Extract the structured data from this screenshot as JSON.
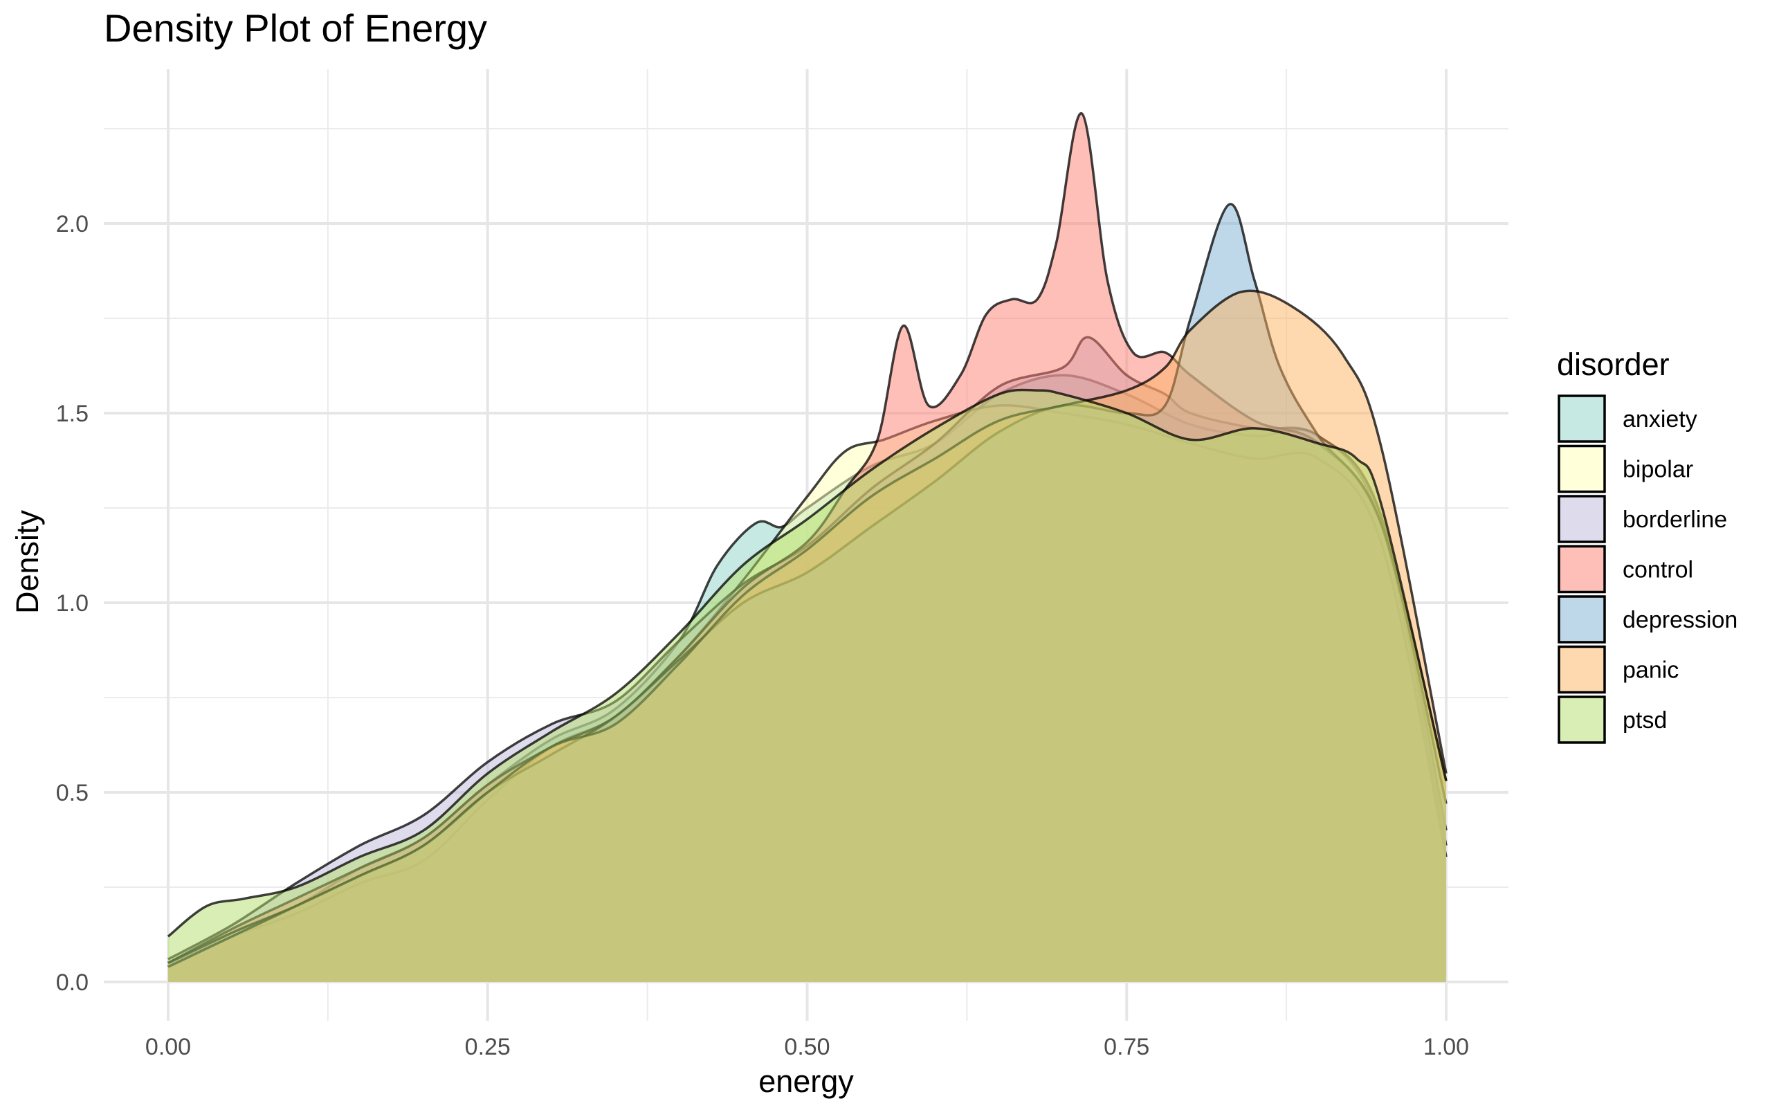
{
  "chart_data": {
    "type": "area",
    "subtype": "density",
    "title": "Density Plot of Energy",
    "xlabel": "energy",
    "ylabel": "Density",
    "xlim": [
      0,
      1
    ],
    "ylim": [
      0,
      2.35
    ],
    "x_ticks": [
      0,
      0.25,
      0.5,
      0.75,
      1
    ],
    "x_tick_labels": [
      "0.00",
      "0.25",
      "0.50",
      "0.75",
      "1.00"
    ],
    "y_ticks": [
      0,
      0.5,
      1,
      1.5,
      2
    ],
    "y_tick_labels": [
      "0.0",
      "0.5",
      "1.0",
      "1.5",
      "2.0"
    ],
    "grid": true,
    "legend_title": "disorder",
    "legend_position": "right",
    "fill_opacity": 0.5,
    "series": [
      {
        "name": "anxiety",
        "color": "#8DD3C7",
        "x": [
          0,
          0.05,
          0.1,
          0.15,
          0.2,
          0.25,
          0.3,
          0.35,
          0.4,
          0.43,
          0.46,
          0.48,
          0.5,
          0.55,
          0.6,
          0.65,
          0.7,
          0.75,
          0.8,
          0.85,
          0.9,
          0.95,
          1.0
        ],
        "y": [
          0.04,
          0.13,
          0.2,
          0.3,
          0.38,
          0.52,
          0.64,
          0.72,
          0.9,
          1.1,
          1.21,
          1.2,
          1.25,
          1.36,
          1.42,
          1.55,
          1.6,
          1.55,
          1.47,
          1.44,
          1.44,
          1.2,
          0.36
        ]
      },
      {
        "name": "bipolar",
        "color": "#FFFFB3",
        "x": [
          0,
          0.05,
          0.1,
          0.15,
          0.2,
          0.25,
          0.3,
          0.35,
          0.4,
          0.45,
          0.5,
          0.53,
          0.56,
          0.6,
          0.65,
          0.7,
          0.75,
          0.8,
          0.85,
          0.9,
          0.95,
          1.0
        ],
        "y": [
          0.05,
          0.12,
          0.18,
          0.26,
          0.32,
          0.48,
          0.62,
          0.7,
          0.86,
          1.06,
          1.28,
          1.4,
          1.43,
          1.48,
          1.52,
          1.5,
          1.47,
          1.42,
          1.38,
          1.38,
          1.15,
          0.33
        ]
      },
      {
        "name": "borderline",
        "color": "#BEBADA",
        "x": [
          0,
          0.05,
          0.1,
          0.15,
          0.2,
          0.25,
          0.3,
          0.35,
          0.4,
          0.45,
          0.5,
          0.55,
          0.6,
          0.65,
          0.7,
          0.72,
          0.75,
          0.78,
          0.8,
          0.85,
          0.9,
          0.95,
          1.0
        ],
        "y": [
          0.06,
          0.15,
          0.26,
          0.36,
          0.44,
          0.58,
          0.68,
          0.74,
          0.9,
          1.05,
          1.15,
          1.3,
          1.42,
          1.57,
          1.62,
          1.7,
          1.6,
          1.55,
          1.5,
          1.46,
          1.44,
          1.22,
          0.4
        ]
      },
      {
        "name": "control",
        "color": "#FB8072",
        "x": [
          0,
          0.05,
          0.1,
          0.15,
          0.2,
          0.25,
          0.3,
          0.35,
          0.4,
          0.45,
          0.5,
          0.53,
          0.555,
          0.575,
          0.595,
          0.62,
          0.64,
          0.66,
          0.68,
          0.695,
          0.715,
          0.735,
          0.755,
          0.78,
          0.8,
          0.85,
          0.9,
          0.95,
          1.0
        ],
        "y": [
          0.05,
          0.14,
          0.22,
          0.3,
          0.38,
          0.52,
          0.62,
          0.7,
          0.86,
          1.04,
          1.16,
          1.3,
          1.43,
          1.73,
          1.52,
          1.6,
          1.76,
          1.8,
          1.8,
          1.95,
          2.29,
          1.85,
          1.66,
          1.66,
          1.6,
          1.48,
          1.42,
          1.2,
          0.53
        ]
      },
      {
        "name": "depression",
        "color": "#80B1D3",
        "x": [
          0,
          0.05,
          0.1,
          0.15,
          0.2,
          0.25,
          0.3,
          0.35,
          0.4,
          0.45,
          0.5,
          0.55,
          0.6,
          0.65,
          0.7,
          0.75,
          0.78,
          0.8,
          0.83,
          0.85,
          0.87,
          0.9,
          0.95,
          1.0
        ],
        "y": [
          0.05,
          0.13,
          0.2,
          0.28,
          0.36,
          0.5,
          0.6,
          0.7,
          0.85,
          1.0,
          1.08,
          1.2,
          1.32,
          1.45,
          1.52,
          1.5,
          1.52,
          1.75,
          2.05,
          1.85,
          1.62,
          1.44,
          1.2,
          0.47
        ]
      },
      {
        "name": "panic",
        "color": "#FDB462",
        "x": [
          0,
          0.05,
          0.1,
          0.15,
          0.2,
          0.25,
          0.3,
          0.35,
          0.4,
          0.45,
          0.5,
          0.55,
          0.6,
          0.65,
          0.7,
          0.75,
          0.78,
          0.8,
          0.84,
          0.88,
          0.92,
          0.95,
          1.0
        ],
        "y": [
          0.04,
          0.12,
          0.2,
          0.28,
          0.36,
          0.5,
          0.62,
          0.68,
          0.84,
          1.02,
          1.14,
          1.28,
          1.38,
          1.48,
          1.52,
          1.56,
          1.62,
          1.72,
          1.82,
          1.78,
          1.65,
          1.4,
          0.55
        ]
      },
      {
        "name": "ptsd",
        "color": "#B3DE69",
        "x": [
          0,
          0.03,
          0.06,
          0.1,
          0.15,
          0.2,
          0.25,
          0.3,
          0.35,
          0.4,
          0.45,
          0.5,
          0.55,
          0.6,
          0.65,
          0.68,
          0.7,
          0.75,
          0.8,
          0.85,
          0.9,
          0.93,
          0.95,
          1.0
        ],
        "y": [
          0.12,
          0.2,
          0.22,
          0.25,
          0.33,
          0.4,
          0.55,
          0.66,
          0.76,
          0.92,
          1.1,
          1.22,
          1.35,
          1.46,
          1.55,
          1.56,
          1.55,
          1.5,
          1.43,
          1.46,
          1.42,
          1.38,
          1.25,
          0.53
        ]
      }
    ]
  }
}
